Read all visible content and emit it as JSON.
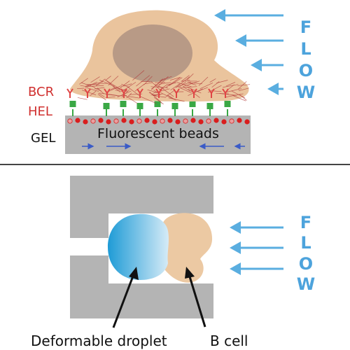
{
  "colors": {
    "cell": "#eac49d",
    "nucleus": "#b89a86",
    "actin": "#b23a3a",
    "bcr": "#e04545",
    "hel": "#3aa845",
    "gel": "#b4b4b4",
    "bead": "#d91e1e",
    "arrow_blue": "#5aaee0",
    "divider": "#444444",
    "droplet_dark": "#1e9bd6",
    "droplet_light": "#d6ebf7",
    "bcell": "#ecc9a3",
    "trap": "#b4b4b4",
    "pointer": "#111111"
  },
  "top": {
    "label_bcr": "BCR",
    "label_hel": "HEL",
    "label_gel": "GEL",
    "label_beads": "Fluorescent beads",
    "flow_letters": [
      "F",
      "L",
      "O",
      "W"
    ]
  },
  "bottom": {
    "flow_letters": [
      "F",
      "L",
      "O",
      "W"
    ],
    "label_droplet": "Deformable droplet",
    "label_bcell": "B cell"
  }
}
